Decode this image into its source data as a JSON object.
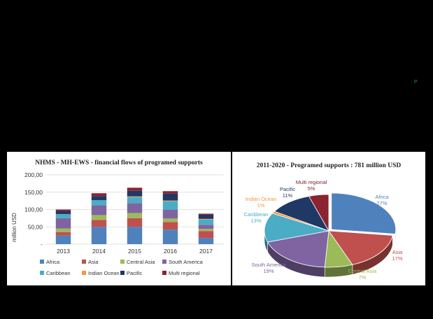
{
  "marker_text": "P",
  "chart_data": [
    {
      "type": "bar",
      "stacked": true,
      "title": "NHMS  - MH-EWS  - financial flows of programed supports",
      "ylabel": "million USD",
      "xlabel": "",
      "categories": [
        "2013",
        "2014",
        "2015",
        "2016",
        "2017"
      ],
      "ylim": [
        0,
        200
      ],
      "yticks": [
        "-",
        "50,00",
        "100,00",
        "150,00",
        "200,00"
      ],
      "grid": true,
      "legend_position": "bottom",
      "series": [
        {
          "name": "Africa",
          "color": "#4f81bd",
          "values": [
            25,
            50,
            50,
            42,
            18
          ]
        },
        {
          "name": "Asia",
          "color": "#c0504d",
          "values": [
            10,
            20,
            25,
            22,
            20
          ]
        },
        {
          "name": "Central Asia",
          "color": "#9bbb59",
          "values": [
            10,
            14,
            15,
            10,
            6
          ]
        },
        {
          "name": "South America",
          "color": "#8064a2",
          "values": [
            30,
            28,
            28,
            25,
            12
          ]
        },
        {
          "name": "Caribbean",
          "color": "#4bacc6",
          "values": [
            12,
            15,
            18,
            25,
            15
          ]
        },
        {
          "name": "Indian Ocean",
          "color": "#f79646",
          "values": [
            0,
            0,
            2,
            2,
            2
          ]
        },
        {
          "name": "Pacific",
          "color": "#1f3864",
          "values": [
            8,
            12,
            16,
            20,
            12
          ]
        },
        {
          "name": "Multi regional",
          "color": "#8b2331",
          "values": [
            5,
            8,
            9,
            7,
            3
          ]
        }
      ]
    },
    {
      "type": "pie",
      "style": "3d-exploded",
      "title": "2011-2020 - Programed supports  : 781 million USD",
      "slices": [
        {
          "name": "Africa",
          "pct": "27%",
          "value": 27,
          "color": "#4f81bd"
        },
        {
          "name": "Asia",
          "pct": "17%",
          "value": 17,
          "color": "#c0504d"
        },
        {
          "name": "Central Asia",
          "pct": "7%",
          "value": 7,
          "color": "#9bbb59"
        },
        {
          "name": "South America",
          "pct": "19%",
          "value": 19,
          "color": "#8064a2"
        },
        {
          "name": "Caribbean",
          "pct": "13%",
          "value": 13,
          "color": "#4bacc6"
        },
        {
          "name": "Indian Ocean",
          "pct": "1%",
          "value": 1,
          "color": "#f79646"
        },
        {
          "name": "Pacific",
          "pct": "11%",
          "value": 11,
          "color": "#1f3864"
        },
        {
          "name": "Multi regional",
          "pct": "5%",
          "value": 5,
          "color": "#8b2331"
        }
      ]
    }
  ]
}
